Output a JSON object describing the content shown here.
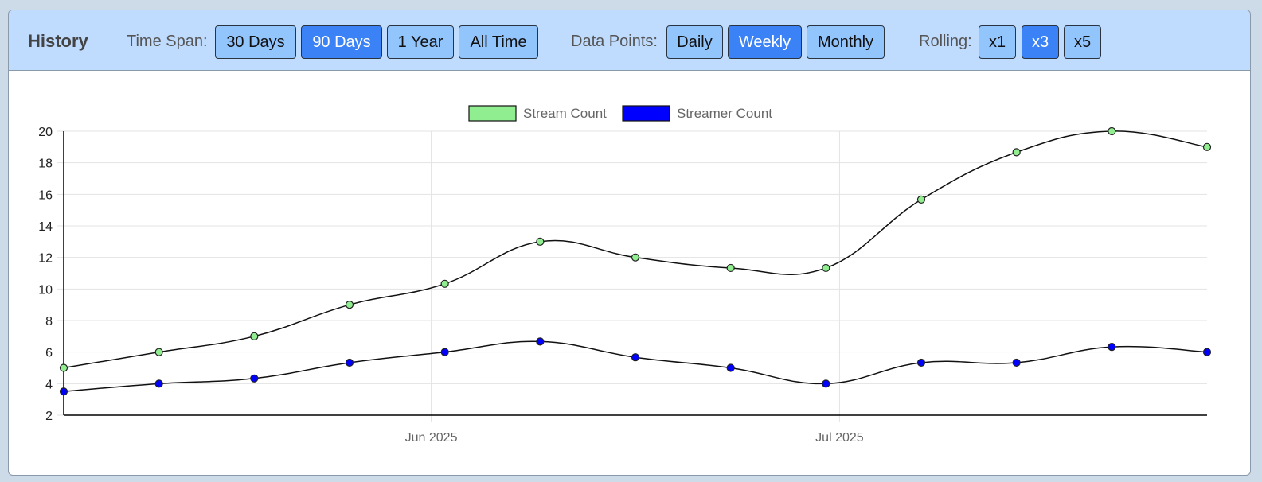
{
  "header": {
    "title": "History",
    "time_span": {
      "label": "Time Span:",
      "options": [
        "30 Days",
        "90 Days",
        "1 Year",
        "All Time"
      ],
      "selected": "90 Days"
    },
    "data_points": {
      "label": "Data Points:",
      "options": [
        "Daily",
        "Weekly",
        "Monthly"
      ],
      "selected": "Weekly"
    },
    "rolling": {
      "label": "Rolling:",
      "options": [
        "x1",
        "x3",
        "x5"
      ],
      "selected": "x3"
    }
  },
  "colors": {
    "stream_count": "#90ee90",
    "streamer_count": "#0000ff",
    "active_button": "#3b82f6",
    "button": "#93c5fd",
    "toolbar": "#bfdbfe"
  },
  "chart_data": {
    "type": "line",
    "x": [
      "2025-05-05",
      "2025-05-12",
      "2025-05-19",
      "2025-05-26",
      "2025-06-02",
      "2025-06-09",
      "2025-06-16",
      "2025-06-23",
      "2025-06-30",
      "2025-07-07",
      "2025-07-14",
      "2025-07-21",
      "2025-07-28"
    ],
    "x_ticks": [
      {
        "value": "2025-06-01",
        "label": "Jun 2025"
      },
      {
        "value": "2025-07-01",
        "label": "Jul 2025"
      }
    ],
    "series": [
      {
        "name": "Stream Count",
        "color": "#90ee90",
        "values": [
          5,
          6,
          7,
          9,
          10.33,
          13,
          12,
          11.33,
          11.33,
          15.67,
          18.67,
          20,
          19
        ]
      },
      {
        "name": "Streamer Count",
        "color": "#0000ff",
        "values": [
          3.5,
          4,
          4.33,
          5.33,
          6,
          6.67,
          5.67,
          5,
          4,
          5.33,
          5.33,
          6.33,
          6
        ]
      }
    ],
    "ylim": [
      2,
      20
    ],
    "yticks": [
      2,
      4,
      6,
      8,
      10,
      12,
      14,
      16,
      18,
      20
    ],
    "xlabel": "",
    "ylabel": "",
    "grid": true,
    "legend": "top-center"
  }
}
